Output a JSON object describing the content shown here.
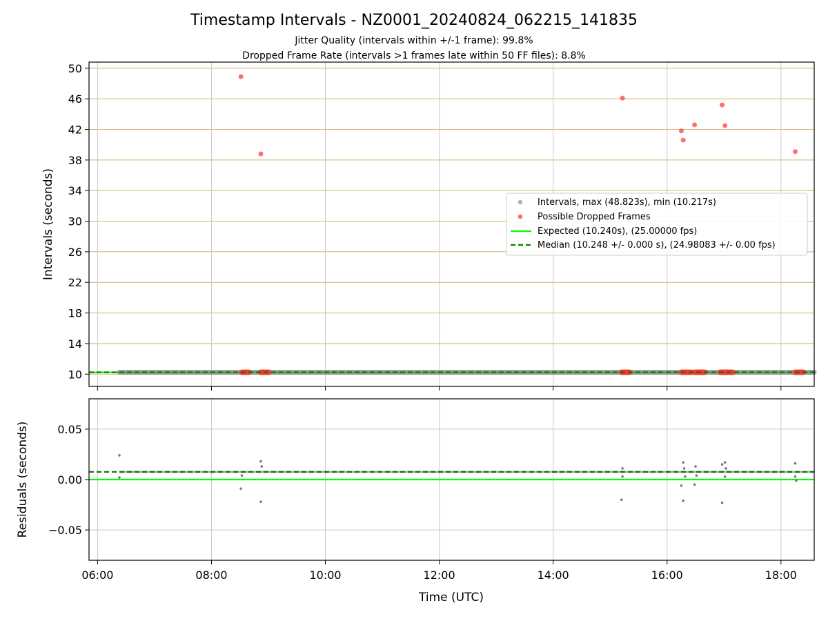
{
  "chart_data": [
    {
      "type": "scatter",
      "panel": "intervals",
      "title": "Timestamp Intervals - NZ0001_20240824_062215_141835",
      "subtitle_lines": [
        "Jitter Quality (intervals within +/-1 frame): 99.8%",
        "Dropped Frame Rate (intervals >1 frames late within 50 FF files): 8.8%"
      ],
      "ylabel": "Intervals (seconds)",
      "x_axis": {
        "type": "time_utc",
        "range": [
          "05:51",
          "18:35"
        ]
      },
      "ylim": [
        8.4,
        50.8
      ],
      "yticks": [
        "10",
        "14",
        "18",
        "22",
        "26",
        "30",
        "34",
        "38",
        "42",
        "46",
        "50"
      ],
      "grid": {
        "x": true,
        "y": true,
        "y_color": "#d4b26a"
      },
      "legend": {
        "placement": "center-right",
        "entries": [
          "Intervals, max (48.823s), min (10.217s)",
          "Possible Dropped Frames",
          "Expected (10.240s), (25.00000 fps)",
          "Median (10.248 +/- 0.000 s), (24.98083 +/- 0.00 fps)"
        ]
      },
      "series": [
        {
          "kind": "intervals",
          "color": "#808080",
          "range_x": [
            "06:23",
            "18:35"
          ],
          "value": 10.248
        },
        {
          "kind": "dropped_frames",
          "color": "#ff3333",
          "points": [
            {
              "x": "08:31",
              "y": 48.9
            },
            {
              "x": "08:52",
              "y": 38.8
            },
            {
              "x": "15:13",
              "y": 46.1
            },
            {
              "x": "16:15",
              "y": 41.8
            },
            {
              "x": "16:17",
              "y": 40.6
            },
            {
              "x": "16:29",
              "y": 42.6
            },
            {
              "x": "16:58",
              "y": 45.2
            },
            {
              "x": "17:01",
              "y": 42.5
            },
            {
              "x": "18:15",
              "y": 39.1
            }
          ],
          "clusters_near_10": [
            [
              "08:32",
              "08:40"
            ],
            [
              "08:52",
              "09:01"
            ],
            [
              "15:12",
              "15:21"
            ],
            [
              "16:15",
              "16:27"
            ],
            [
              "16:29",
              "16:40"
            ],
            [
              "16:56",
              "17:10"
            ],
            [
              "18:15",
              "18:24"
            ]
          ]
        },
        {
          "kind": "expected",
          "color": "#00ff00",
          "value": 10.24
        },
        {
          "kind": "median",
          "color": "#008000",
          "value": 10.248
        }
      ]
    },
    {
      "type": "scatter",
      "panel": "residuals",
      "xlabel": "Time (UTC)",
      "ylabel": "Residuals (seconds)",
      "xticks": [
        "06:00",
        "08:00",
        "10:00",
        "12:00",
        "14:00",
        "16:00",
        "18:00"
      ],
      "ylim": [
        -0.08,
        0.08
      ],
      "yticks": [
        "−0.05",
        "0.00",
        "0.05"
      ],
      "grid": {
        "x": true,
        "y": true
      },
      "expected": 0.0,
      "median": 0.0076,
      "residual_color": "#777777",
      "outliers": [
        {
          "x": "06:23",
          "y": 0.024
        },
        {
          "x": "06:23",
          "y": 0.002
        },
        {
          "x": "08:31",
          "y": -0.009
        },
        {
          "x": "08:32",
          "y": 0.004
        },
        {
          "x": "08:52",
          "y": 0.018
        },
        {
          "x": "08:52",
          "y": -0.022
        },
        {
          "x": "08:53",
          "y": 0.013
        },
        {
          "x": "15:12",
          "y": -0.02
        },
        {
          "x": "15:13",
          "y": 0.011
        },
        {
          "x": "15:13",
          "y": 0.003
        },
        {
          "x": "16:15",
          "y": -0.006
        },
        {
          "x": "16:17",
          "y": 0.017
        },
        {
          "x": "16:17",
          "y": -0.021
        },
        {
          "x": "16:18",
          "y": 0.011
        },
        {
          "x": "16:19",
          "y": 0.003
        },
        {
          "x": "16:29",
          "y": -0.005
        },
        {
          "x": "16:30",
          "y": 0.013
        },
        {
          "x": "16:31",
          "y": 0.004
        },
        {
          "x": "16:58",
          "y": 0.015
        },
        {
          "x": "16:58",
          "y": -0.023
        },
        {
          "x": "17:01",
          "y": 0.017
        },
        {
          "x": "17:01",
          "y": 0.003
        },
        {
          "x": "17:02",
          "y": 0.011
        },
        {
          "x": "18:15",
          "y": 0.016
        },
        {
          "x": "18:15",
          "y": 0.003
        },
        {
          "x": "18:16",
          "y": -0.001
        }
      ]
    }
  ],
  "colors": {
    "axis": "#000000",
    "grid": "#c8c8c8",
    "y_grid_top": "#d4b26a",
    "expected": "#00ff00",
    "median": "#008000",
    "dropped": "#ff3333",
    "intervals": "#808080"
  }
}
